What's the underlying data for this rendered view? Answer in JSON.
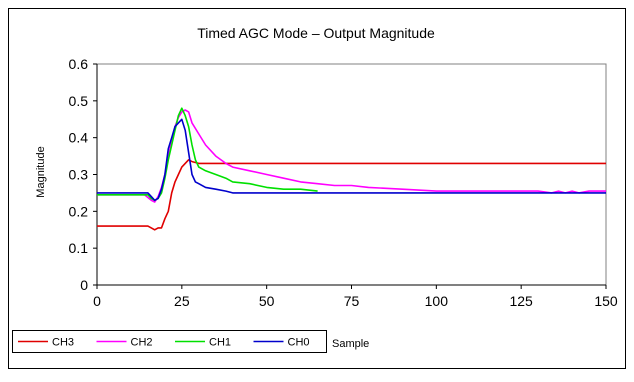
{
  "chart_data": {
    "type": "line",
    "title": "Timed AGC Mode – Output Magnitude",
    "xlabel": "Sample",
    "ylabel": "Magnitude",
    "xlim": [
      0,
      150
    ],
    "ylim": [
      0,
      0.6
    ],
    "xticks": [
      0,
      25,
      50,
      75,
      100,
      125,
      150
    ],
    "yticks": [
      0,
      0.1,
      0.2,
      0.3,
      0.4,
      0.5,
      0.6
    ],
    "xtick_labels": [
      "0",
      "25",
      "50",
      "75",
      "100",
      "125",
      "150"
    ],
    "ytick_labels": [
      "0",
      "0.1",
      "0.2",
      "0.3",
      "0.4",
      "0.5",
      "0.6"
    ],
    "grid": false,
    "legend_position": "bottom-left",
    "series": [
      {
        "name": "CH3",
        "color": "#e00000",
        "x": [
          0,
          15,
          16,
          17,
          18,
          19,
          20,
          21,
          22,
          23,
          24,
          25,
          26,
          27,
          28,
          30,
          32,
          35,
          40,
          60,
          100,
          150
        ],
        "y": [
          0.16,
          0.16,
          0.155,
          0.15,
          0.155,
          0.155,
          0.18,
          0.2,
          0.25,
          0.28,
          0.3,
          0.32,
          0.33,
          0.34,
          0.335,
          0.33,
          0.33,
          0.33,
          0.33,
          0.33,
          0.33,
          0.33
        ]
      },
      {
        "name": "CH2",
        "color": "#ff00ff",
        "x": [
          0,
          14,
          16,
          17,
          18,
          19,
          20,
          21,
          22,
          23,
          24,
          25,
          26,
          27,
          28,
          30,
          32,
          35,
          38,
          40,
          45,
          50,
          55,
          60,
          65,
          70,
          75,
          80,
          90,
          100,
          110,
          120,
          130,
          134,
          136,
          138,
          140,
          142,
          145,
          150
        ],
        "y": [
          0.245,
          0.245,
          0.23,
          0.225,
          0.24,
          0.265,
          0.3,
          0.35,
          0.39,
          0.43,
          0.455,
          0.47,
          0.475,
          0.47,
          0.44,
          0.41,
          0.38,
          0.35,
          0.33,
          0.32,
          0.31,
          0.3,
          0.29,
          0.28,
          0.275,
          0.27,
          0.27,
          0.265,
          0.26,
          0.255,
          0.255,
          0.255,
          0.255,
          0.25,
          0.255,
          0.25,
          0.255,
          0.25,
          0.255,
          0.255
        ]
      },
      {
        "name": "CH1",
        "color": "#00e000",
        "x": [
          0,
          15,
          16,
          17,
          18,
          19,
          20,
          21,
          22,
          23,
          24,
          25,
          26,
          27,
          28,
          29,
          30,
          32,
          35,
          38,
          40,
          45,
          50,
          55,
          60,
          65
        ],
        "y": [
          0.245,
          0.245,
          0.235,
          0.23,
          0.235,
          0.25,
          0.29,
          0.34,
          0.38,
          0.42,
          0.46,
          0.48,
          0.46,
          0.43,
          0.38,
          0.34,
          0.32,
          0.31,
          0.3,
          0.29,
          0.28,
          0.275,
          0.265,
          0.26,
          0.26,
          0.255
        ]
      },
      {
        "name": "CH0",
        "color": "#0000cc",
        "x": [
          0,
          15,
          16,
          17,
          18,
          19,
          20,
          21,
          22,
          23,
          24,
          25,
          26,
          27,
          28,
          29,
          30,
          32,
          35,
          38,
          40,
          50,
          75,
          100,
          150
        ],
        "y": [
          0.25,
          0.25,
          0.24,
          0.23,
          0.235,
          0.26,
          0.3,
          0.37,
          0.4,
          0.43,
          0.44,
          0.45,
          0.42,
          0.36,
          0.3,
          0.28,
          0.275,
          0.265,
          0.26,
          0.255,
          0.25,
          0.25,
          0.25,
          0.25,
          0.25
        ]
      }
    ]
  }
}
